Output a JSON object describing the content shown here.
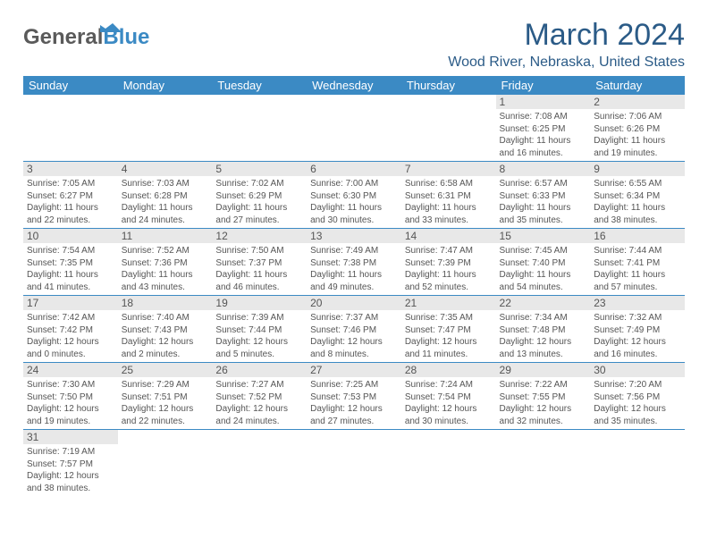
{
  "brand": {
    "first": "General",
    "second": "Blue",
    "color1": "#5a5a5a",
    "color2": "#3b8ac4"
  },
  "title": "March 2024",
  "location": "Wood River, Nebraska, United States",
  "colors": {
    "header_bg": "#3b8ac4",
    "daynum_bg": "#e8e8e8",
    "text": "#555555",
    "rule": "#3b8ac4",
    "title_color": "#2b5b87"
  },
  "days_of_week": [
    "Sunday",
    "Monday",
    "Tuesday",
    "Wednesday",
    "Thursday",
    "Friday",
    "Saturday"
  ],
  "weeks": [
    {
      "nums": [
        "",
        "",
        "",
        "",
        "",
        "1",
        "2"
      ],
      "cells": [
        null,
        null,
        null,
        null,
        null,
        {
          "rise": "Sunrise: 7:08 AM",
          "set": "Sunset: 6:25 PM",
          "d1": "Daylight: 11 hours",
          "d2": "and 16 minutes."
        },
        {
          "rise": "Sunrise: 7:06 AM",
          "set": "Sunset: 6:26 PM",
          "d1": "Daylight: 11 hours",
          "d2": "and 19 minutes."
        }
      ]
    },
    {
      "nums": [
        "3",
        "4",
        "5",
        "6",
        "7",
        "8",
        "9"
      ],
      "cells": [
        {
          "rise": "Sunrise: 7:05 AM",
          "set": "Sunset: 6:27 PM",
          "d1": "Daylight: 11 hours",
          "d2": "and 22 minutes."
        },
        {
          "rise": "Sunrise: 7:03 AM",
          "set": "Sunset: 6:28 PM",
          "d1": "Daylight: 11 hours",
          "d2": "and 24 minutes."
        },
        {
          "rise": "Sunrise: 7:02 AM",
          "set": "Sunset: 6:29 PM",
          "d1": "Daylight: 11 hours",
          "d2": "and 27 minutes."
        },
        {
          "rise": "Sunrise: 7:00 AM",
          "set": "Sunset: 6:30 PM",
          "d1": "Daylight: 11 hours",
          "d2": "and 30 minutes."
        },
        {
          "rise": "Sunrise: 6:58 AM",
          "set": "Sunset: 6:31 PM",
          "d1": "Daylight: 11 hours",
          "d2": "and 33 minutes."
        },
        {
          "rise": "Sunrise: 6:57 AM",
          "set": "Sunset: 6:33 PM",
          "d1": "Daylight: 11 hours",
          "d2": "and 35 minutes."
        },
        {
          "rise": "Sunrise: 6:55 AM",
          "set": "Sunset: 6:34 PM",
          "d1": "Daylight: 11 hours",
          "d2": "and 38 minutes."
        }
      ]
    },
    {
      "nums": [
        "10",
        "11",
        "12",
        "13",
        "14",
        "15",
        "16"
      ],
      "cells": [
        {
          "rise": "Sunrise: 7:54 AM",
          "set": "Sunset: 7:35 PM",
          "d1": "Daylight: 11 hours",
          "d2": "and 41 minutes."
        },
        {
          "rise": "Sunrise: 7:52 AM",
          "set": "Sunset: 7:36 PM",
          "d1": "Daylight: 11 hours",
          "d2": "and 43 minutes."
        },
        {
          "rise": "Sunrise: 7:50 AM",
          "set": "Sunset: 7:37 PM",
          "d1": "Daylight: 11 hours",
          "d2": "and 46 minutes."
        },
        {
          "rise": "Sunrise: 7:49 AM",
          "set": "Sunset: 7:38 PM",
          "d1": "Daylight: 11 hours",
          "d2": "and 49 minutes."
        },
        {
          "rise": "Sunrise: 7:47 AM",
          "set": "Sunset: 7:39 PM",
          "d1": "Daylight: 11 hours",
          "d2": "and 52 minutes."
        },
        {
          "rise": "Sunrise: 7:45 AM",
          "set": "Sunset: 7:40 PM",
          "d1": "Daylight: 11 hours",
          "d2": "and 54 minutes."
        },
        {
          "rise": "Sunrise: 7:44 AM",
          "set": "Sunset: 7:41 PM",
          "d1": "Daylight: 11 hours",
          "d2": "and 57 minutes."
        }
      ]
    },
    {
      "nums": [
        "17",
        "18",
        "19",
        "20",
        "21",
        "22",
        "23"
      ],
      "cells": [
        {
          "rise": "Sunrise: 7:42 AM",
          "set": "Sunset: 7:42 PM",
          "d1": "Daylight: 12 hours",
          "d2": "and 0 minutes."
        },
        {
          "rise": "Sunrise: 7:40 AM",
          "set": "Sunset: 7:43 PM",
          "d1": "Daylight: 12 hours",
          "d2": "and 2 minutes."
        },
        {
          "rise": "Sunrise: 7:39 AM",
          "set": "Sunset: 7:44 PM",
          "d1": "Daylight: 12 hours",
          "d2": "and 5 minutes."
        },
        {
          "rise": "Sunrise: 7:37 AM",
          "set": "Sunset: 7:46 PM",
          "d1": "Daylight: 12 hours",
          "d2": "and 8 minutes."
        },
        {
          "rise": "Sunrise: 7:35 AM",
          "set": "Sunset: 7:47 PM",
          "d1": "Daylight: 12 hours",
          "d2": "and 11 minutes."
        },
        {
          "rise": "Sunrise: 7:34 AM",
          "set": "Sunset: 7:48 PM",
          "d1": "Daylight: 12 hours",
          "d2": "and 13 minutes."
        },
        {
          "rise": "Sunrise: 7:32 AM",
          "set": "Sunset: 7:49 PM",
          "d1": "Daylight: 12 hours",
          "d2": "and 16 minutes."
        }
      ]
    },
    {
      "nums": [
        "24",
        "25",
        "26",
        "27",
        "28",
        "29",
        "30"
      ],
      "cells": [
        {
          "rise": "Sunrise: 7:30 AM",
          "set": "Sunset: 7:50 PM",
          "d1": "Daylight: 12 hours",
          "d2": "and 19 minutes."
        },
        {
          "rise": "Sunrise: 7:29 AM",
          "set": "Sunset: 7:51 PM",
          "d1": "Daylight: 12 hours",
          "d2": "and 22 minutes."
        },
        {
          "rise": "Sunrise: 7:27 AM",
          "set": "Sunset: 7:52 PM",
          "d1": "Daylight: 12 hours",
          "d2": "and 24 minutes."
        },
        {
          "rise": "Sunrise: 7:25 AM",
          "set": "Sunset: 7:53 PM",
          "d1": "Daylight: 12 hours",
          "d2": "and 27 minutes."
        },
        {
          "rise": "Sunrise: 7:24 AM",
          "set": "Sunset: 7:54 PM",
          "d1": "Daylight: 12 hours",
          "d2": "and 30 minutes."
        },
        {
          "rise": "Sunrise: 7:22 AM",
          "set": "Sunset: 7:55 PM",
          "d1": "Daylight: 12 hours",
          "d2": "and 32 minutes."
        },
        {
          "rise": "Sunrise: 7:20 AM",
          "set": "Sunset: 7:56 PM",
          "d1": "Daylight: 12 hours",
          "d2": "and 35 minutes."
        }
      ]
    },
    {
      "nums": [
        "31",
        "",
        "",
        "",
        "",
        "",
        ""
      ],
      "cells": [
        {
          "rise": "Sunrise: 7:19 AM",
          "set": "Sunset: 7:57 PM",
          "d1": "Daylight: 12 hours",
          "d2": "and 38 minutes."
        },
        null,
        null,
        null,
        null,
        null,
        null
      ]
    }
  ]
}
